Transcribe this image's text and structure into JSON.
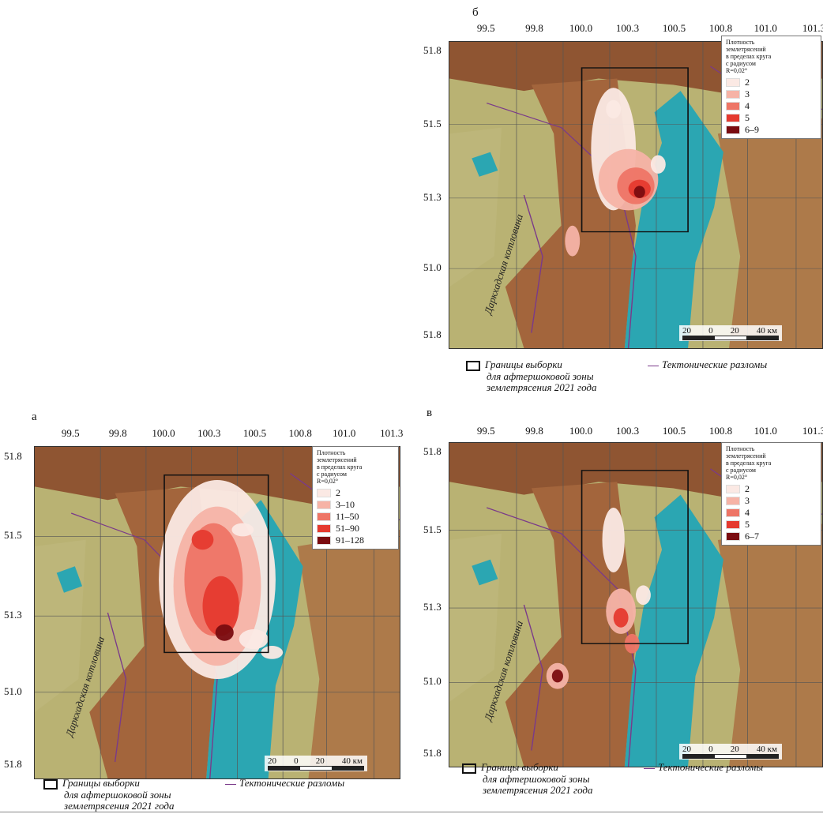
{
  "colors": {
    "lake": "#2ba6b2",
    "lowland": "#b9b273",
    "mountain": "#a3653c",
    "sample_box": "#111111",
    "fault": "#7a3a8a"
  },
  "lon_ticks": [
    "99.5",
    "99.8",
    "100.0",
    "100.3",
    "100.5",
    "100.8",
    "101.0",
    "101.3"
  ],
  "lat_ticks": [
    "51.8",
    "51.5",
    "51.3",
    "51.0",
    "51.8"
  ],
  "place_label": "Даркхадская котловина",
  "scale": {
    "labels": [
      "20",
      "0",
      "20",
      "40 км"
    ]
  },
  "legend_title": [
    "Плотность",
    "землетрясений",
    "в пределах круга",
    "с радиусом",
    "R=0,02°"
  ],
  "panels": {
    "a": {
      "label": "а",
      "legend": [
        {
          "label": "2",
          "color": "#fbe9e4"
        },
        {
          "label": "3–10",
          "color": "#f6b3a6"
        },
        {
          "label": "11–50",
          "color": "#ee7566"
        },
        {
          "label": "51–90",
          "color": "#e53a2f"
        },
        {
          "label": "91–128",
          "color": "#7a0c10"
        }
      ]
    },
    "b": {
      "label": "б",
      "legend": [
        {
          "label": "2",
          "color": "#fbe9e4"
        },
        {
          "label": "3",
          "color": "#f6b3a6"
        },
        {
          "label": "4",
          "color": "#ee7566"
        },
        {
          "label": "5",
          "color": "#e53a2f"
        },
        {
          "label": "6–9",
          "color": "#7a0c10"
        }
      ]
    },
    "c": {
      "label": "в",
      "legend": [
        {
          "label": "2",
          "color": "#fbe9e4"
        },
        {
          "label": "3",
          "color": "#f6b3a6"
        },
        {
          "label": "4",
          "color": "#ee7566"
        },
        {
          "label": "5",
          "color": "#e53a2f"
        },
        {
          "label": "6–7",
          "color": "#7a0c10"
        }
      ]
    }
  },
  "bottom_legend": {
    "box_lines": [
      "Границы выборки",
      "для афтершоковой зоны",
      "землетрясения 2021 года"
    ],
    "faults": "Тектонические разломы"
  }
}
